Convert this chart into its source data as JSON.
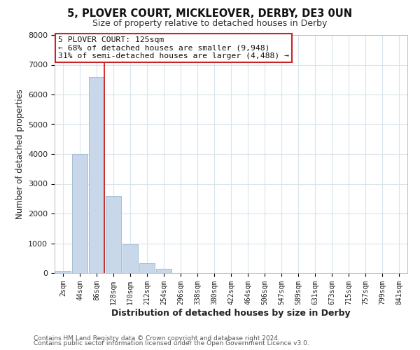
{
  "title": "5, PLOVER COURT, MICKLEOVER, DERBY, DE3 0UN",
  "subtitle": "Size of property relative to detached houses in Derby",
  "xlabel": "Distribution of detached houses by size in Derby",
  "ylabel": "Number of detached properties",
  "bar_labels": [
    "2sqm",
    "44sqm",
    "86sqm",
    "128sqm",
    "170sqm",
    "212sqm",
    "254sqm",
    "296sqm",
    "338sqm",
    "380sqm",
    "422sqm",
    "464sqm",
    "506sqm",
    "547sqm",
    "589sqm",
    "631sqm",
    "673sqm",
    "715sqm",
    "757sqm",
    "799sqm",
    "841sqm"
  ],
  "bar_values": [
    60,
    4000,
    6600,
    2600,
    960,
    330,
    130,
    0,
    0,
    0,
    0,
    0,
    0,
    0,
    0,
    0,
    0,
    0,
    0,
    0,
    0
  ],
  "bar_color": "#c8d8ea",
  "bar_edge_color": "#9ab8cc",
  "vline_color": "#cc2222",
  "ylim": [
    0,
    8000
  ],
  "yticks": [
    0,
    1000,
    2000,
    3000,
    4000,
    5000,
    6000,
    7000,
    8000
  ],
  "annotation_text": "5 PLOVER COURT: 125sqm\n← 68% of detached houses are smaller (9,948)\n31% of semi-detached houses are larger (4,488) →",
  "annotation_box_color": "white",
  "annotation_box_edge_color": "#cc2222",
  "footer_line1": "Contains HM Land Registry data © Crown copyright and database right 2024.",
  "footer_line2": "Contains public sector information licensed under the Open Government Licence v3.0.",
  "bg_color": "white",
  "fig_bg_color": "white",
  "grid_color": "#d8e4ec",
  "title_fontsize": 10.5,
  "subtitle_fontsize": 9
}
